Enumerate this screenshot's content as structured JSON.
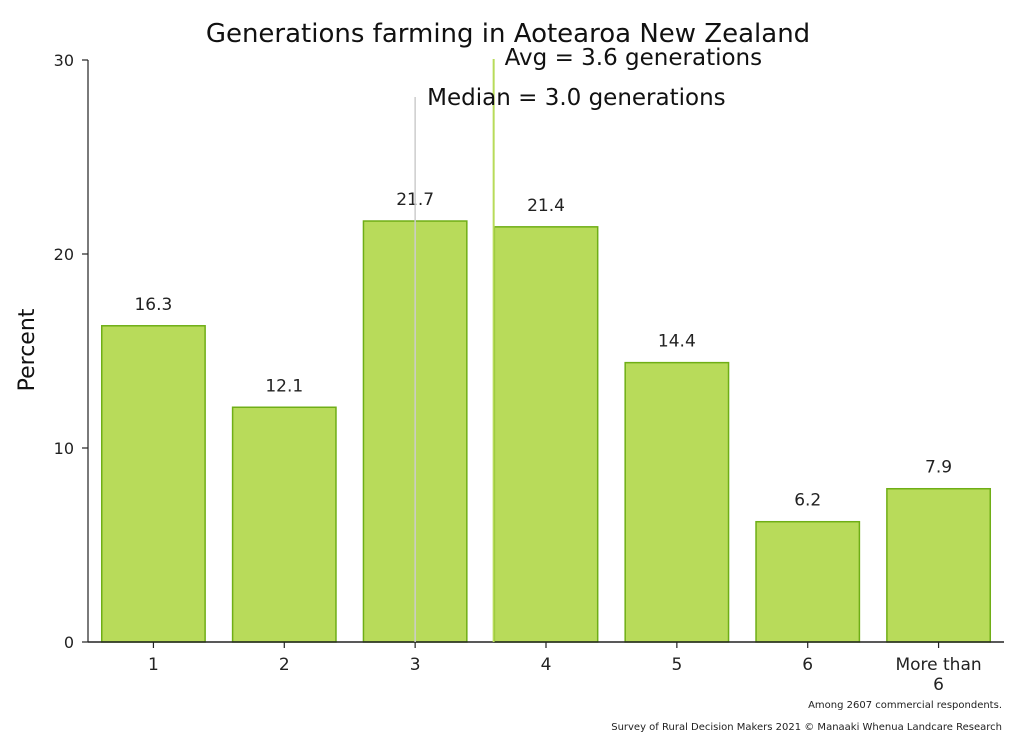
{
  "chart_data": {
    "type": "bar",
    "title": "Generations farming in Aotearoa New Zealand",
    "xlabel": "",
    "ylabel": "Percent",
    "categories": [
      "1",
      "2",
      "3",
      "4",
      "5",
      "6",
      "More than 6"
    ],
    "values": [
      16.3,
      12.1,
      21.7,
      21.4,
      14.4,
      6.2,
      7.9
    ],
    "data_labels": [
      "16.3",
      "12.1",
      "21.7",
      "21.4",
      "14.4",
      "6.2",
      "7.9"
    ],
    "ylim": [
      0,
      30
    ],
    "yticks": [
      0,
      10,
      20,
      30
    ],
    "grid": false,
    "bar_color": "#b8db5a",
    "bar_edge_color": "#6fae16",
    "reference_lines": [
      {
        "label": "Avg = 3.6 generations",
        "value": 3.6,
        "color": "#b8db5a"
      },
      {
        "label": "Median = 3.0 generations",
        "value": 3.0,
        "color": "#cccccc"
      }
    ],
    "footnotes": [
      "Among 2607 commercial respondents.",
      "Survey of Rural Decision Makers 2021 © Manaaki Whenua Landcare Research"
    ]
  }
}
